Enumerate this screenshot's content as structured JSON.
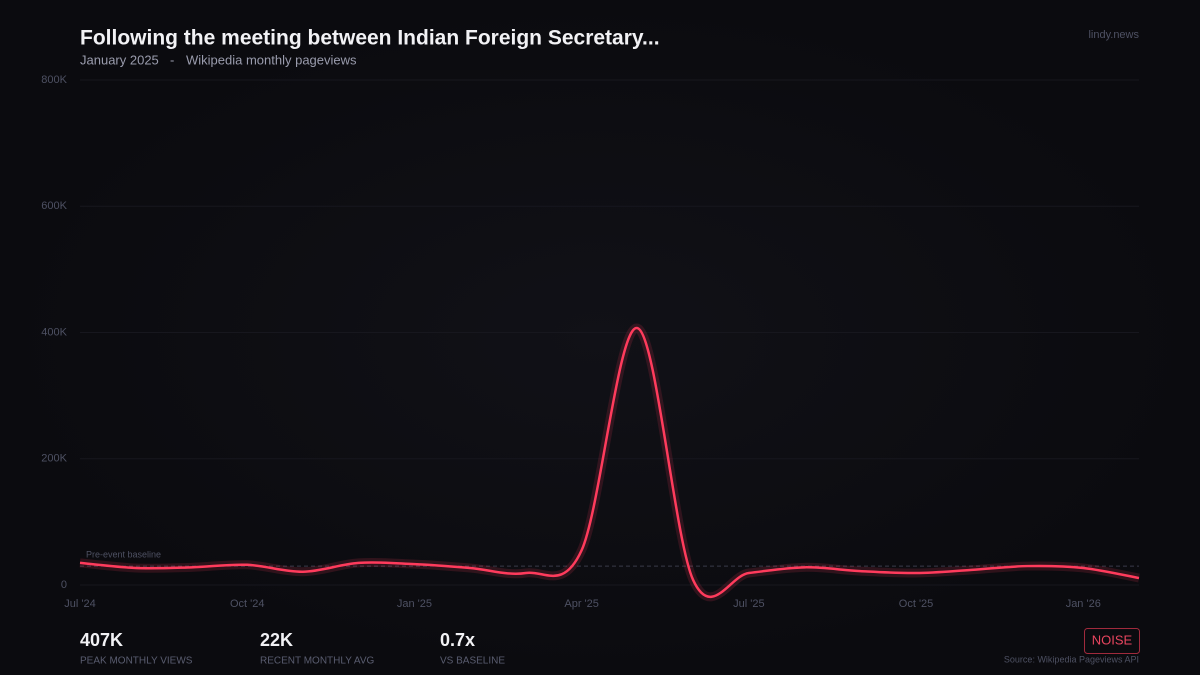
{
  "chart_data": {
    "type": "line",
    "title": "Following the meeting between Indian Foreign Secretary...",
    "subtitle_date": "January 2025",
    "subtitle_source": "Wikipedia monthly pageviews",
    "brand": "lindy.news",
    "x": [
      "2024-07",
      "2024-08",
      "2024-09",
      "2024-10",
      "2024-11",
      "2024-12",
      "2025-01",
      "2025-02",
      "2025-03",
      "2025-04",
      "2025-05",
      "2025-06",
      "2025-07",
      "2025-08",
      "2025-09",
      "2025-10",
      "2025-11",
      "2025-12",
      "2026-01",
      "2026-02"
    ],
    "series": [
      {
        "name": "Monthly pageviews",
        "color": "#ff3b5c",
        "values": [
          35000,
          27000,
          28000,
          32000,
          21000,
          35000,
          33000,
          27000,
          19000,
          55000,
          407000,
          8000,
          19000,
          28000,
          22000,
          19000,
          24000,
          30000,
          27000,
          11000
        ]
      }
    ],
    "baseline": {
      "label": "Pre-event baseline",
      "value": 30000
    },
    "ylim": [
      0,
      800000
    ],
    "yticks": [
      0,
      {
        "value": 200000,
        "label": "200K"
      },
      {
        "value": 400000,
        "label": "400K"
      },
      {
        "value": 600000,
        "label": "600K"
      },
      {
        "value": 800000,
        "label": "800K"
      }
    ],
    "xticks": [
      {
        "value": "2024-07",
        "label": "Jul '24"
      },
      {
        "value": "2024-10",
        "label": "Oct '24"
      },
      {
        "value": "2025-01",
        "label": "Jan '25"
      },
      {
        "value": "2025-04",
        "label": "Apr '25"
      },
      {
        "value": "2025-07",
        "label": "Jul '25"
      },
      {
        "value": "2025-10",
        "label": "Oct '25"
      },
      {
        "value": "2026-01",
        "label": "Jan '26"
      }
    ],
    "grid": true
  },
  "stats": [
    {
      "value": "407K",
      "label": "PEAK MONTHLY VIEWS"
    },
    {
      "value": "22K",
      "label": "RECENT MONTHLY AVG"
    },
    {
      "value": "0.7x",
      "label": "VS BASELINE"
    }
  ],
  "badge": "NOISE",
  "source": "Source: Wikipedia Pageviews API"
}
